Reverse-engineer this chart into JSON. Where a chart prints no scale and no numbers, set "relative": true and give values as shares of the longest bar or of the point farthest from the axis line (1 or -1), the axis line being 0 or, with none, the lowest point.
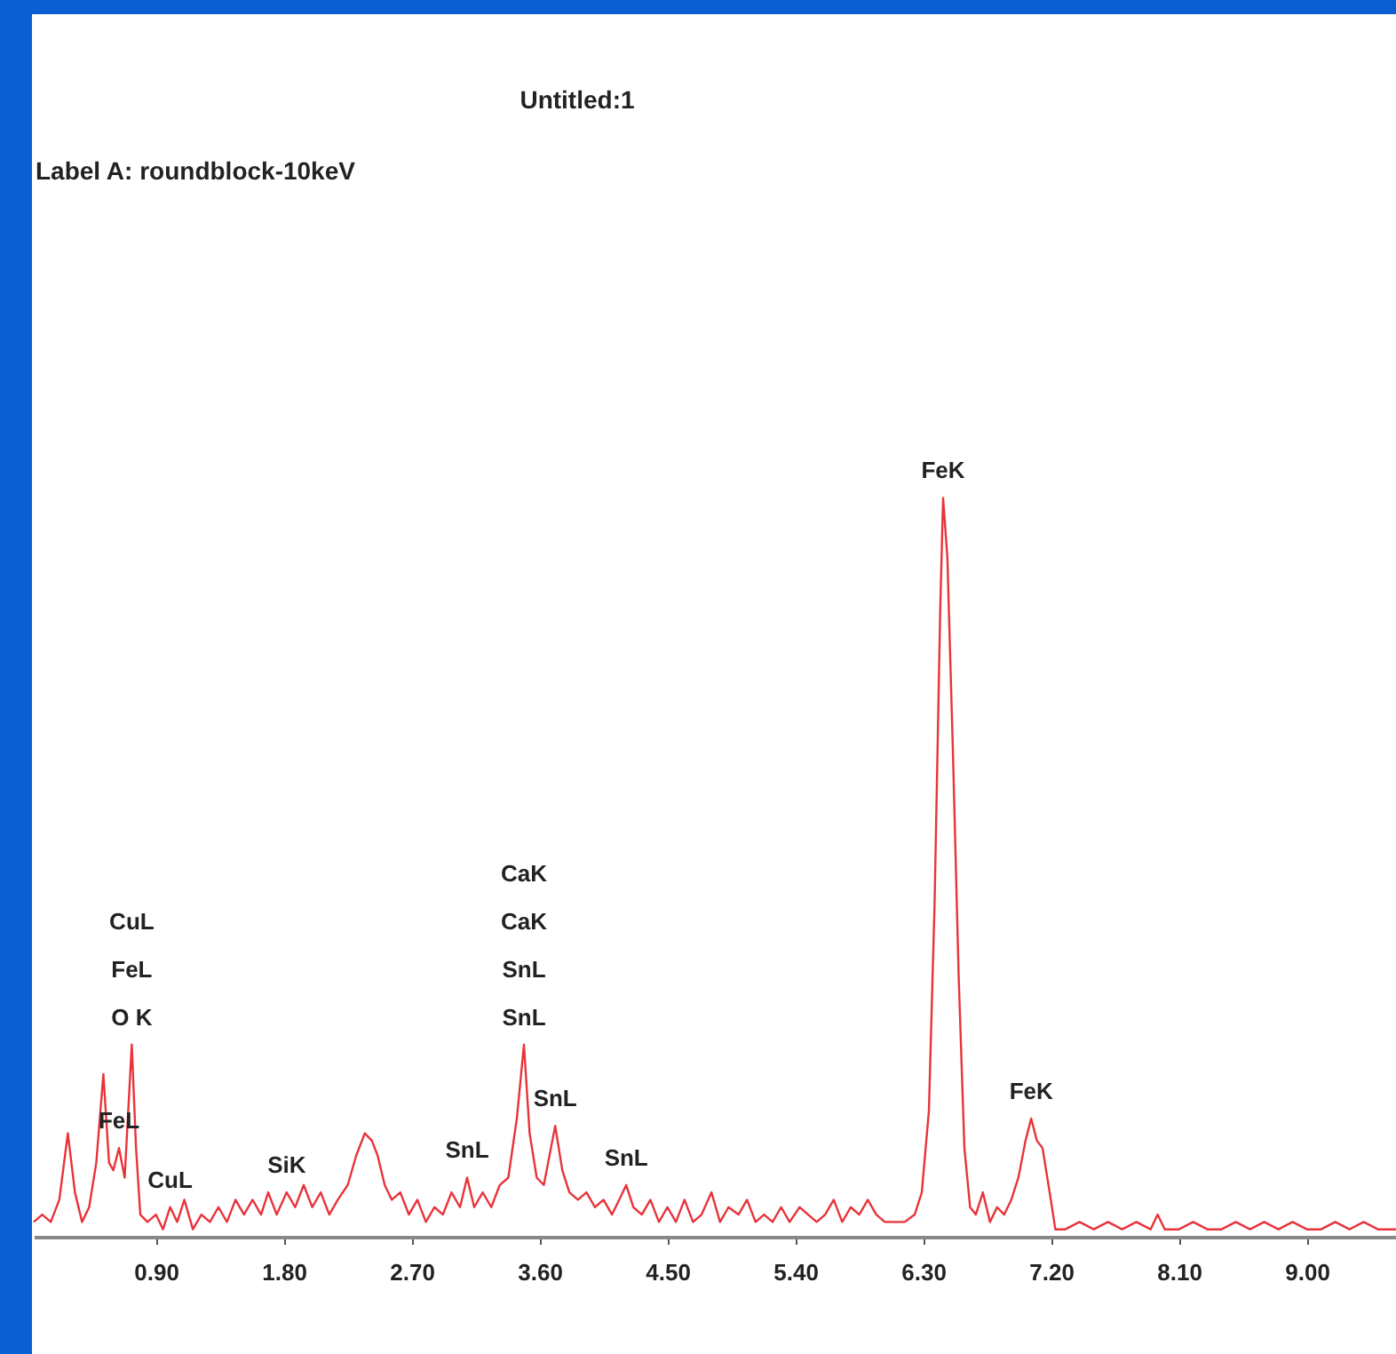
{
  "chart_data": {
    "type": "line",
    "title": "Untitled:1",
    "subtitle": "Label A: roundblock-10keV",
    "relative": true,
    "xlim": [
      0.04,
      9.64
    ],
    "xticks": [
      {
        "value": 0.9,
        "label": "0.90"
      },
      {
        "value": 1.8,
        "label": "1.80"
      },
      {
        "value": 2.7,
        "label": "2.70"
      },
      {
        "value": 3.6,
        "label": "3.60"
      },
      {
        "value": 4.5,
        "label": "4.50"
      },
      {
        "value": 5.4,
        "label": "5.40"
      },
      {
        "value": 6.3,
        "label": "6.30"
      },
      {
        "value": 7.2,
        "label": "7.20"
      },
      {
        "value": 8.1,
        "label": "8.10"
      },
      {
        "value": 9.0,
        "label": "9.00"
      }
    ],
    "grid": false,
    "series": [
      {
        "color": "#e8333a",
        "x": [
          0.04,
          0.1,
          0.16,
          0.22,
          0.28,
          0.33,
          0.38,
          0.43,
          0.48,
          0.53,
          0.57,
          0.6,
          0.64,
          0.68,
          0.73,
          0.76,
          0.79,
          0.84,
          0.9,
          0.95,
          1.0,
          1.05,
          1.1,
          1.16,
          1.22,
          1.28,
          1.34,
          1.4,
          1.46,
          1.52,
          1.58,
          1.64,
          1.69,
          1.75,
          1.82,
          1.88,
          1.94,
          2.0,
          2.06,
          2.12,
          2.18,
          2.25,
          2.31,
          2.37,
          2.42,
          2.46,
          2.51,
          2.56,
          2.62,
          2.68,
          2.74,
          2.8,
          2.86,
          2.92,
          2.98,
          3.04,
          3.09,
          3.14,
          3.2,
          3.26,
          3.32,
          3.38,
          3.44,
          3.49,
          3.53,
          3.58,
          3.63,
          3.67,
          3.71,
          3.76,
          3.81,
          3.87,
          3.93,
          3.99,
          4.05,
          4.11,
          4.16,
          4.21,
          4.26,
          4.32,
          4.38,
          4.44,
          4.5,
          4.56,
          4.62,
          4.68,
          4.74,
          4.81,
          4.87,
          4.93,
          5.0,
          5.06,
          5.12,
          5.18,
          5.24,
          5.3,
          5.36,
          5.43,
          5.49,
          5.55,
          5.61,
          5.67,
          5.73,
          5.79,
          5.85,
          5.91,
          5.97,
          6.03,
          6.1,
          6.17,
          6.24,
          6.29,
          6.34,
          6.38,
          6.42,
          6.44,
          6.47,
          6.51,
          6.55,
          6.59,
          6.63,
          6.67,
          6.72,
          6.77,
          6.82,
          6.87,
          6.92,
          6.97,
          7.02,
          7.06,
          7.1,
          7.14,
          7.19,
          7.23,
          7.3,
          7.4,
          7.5,
          7.6,
          7.7,
          7.8,
          7.9,
          7.95,
          8.0,
          8.1,
          8.2,
          8.3,
          8.4,
          8.5,
          8.6,
          8.7,
          8.8,
          8.9,
          9.0,
          9.1,
          9.2,
          9.3,
          9.4,
          9.5,
          9.64
        ],
        "values": [
          0.02,
          0.03,
          0.02,
          0.05,
          0.14,
          0.06,
          0.02,
          0.04,
          0.1,
          0.22,
          0.1,
          0.09,
          0.12,
          0.08,
          0.26,
          0.12,
          0.03,
          0.02,
          0.03,
          0.01,
          0.04,
          0.02,
          0.05,
          0.01,
          0.03,
          0.02,
          0.04,
          0.02,
          0.05,
          0.03,
          0.05,
          0.03,
          0.06,
          0.03,
          0.06,
          0.04,
          0.07,
          0.04,
          0.06,
          0.03,
          0.05,
          0.07,
          0.11,
          0.14,
          0.13,
          0.11,
          0.07,
          0.05,
          0.06,
          0.03,
          0.05,
          0.02,
          0.04,
          0.03,
          0.06,
          0.04,
          0.08,
          0.04,
          0.06,
          0.04,
          0.07,
          0.08,
          0.16,
          0.26,
          0.14,
          0.08,
          0.07,
          0.11,
          0.15,
          0.09,
          0.06,
          0.05,
          0.06,
          0.04,
          0.05,
          0.03,
          0.05,
          0.07,
          0.04,
          0.03,
          0.05,
          0.02,
          0.04,
          0.02,
          0.05,
          0.02,
          0.03,
          0.06,
          0.02,
          0.04,
          0.03,
          0.05,
          0.02,
          0.03,
          0.02,
          0.04,
          0.02,
          0.04,
          0.03,
          0.02,
          0.03,
          0.05,
          0.02,
          0.04,
          0.03,
          0.05,
          0.03,
          0.02,
          0.02,
          0.02,
          0.03,
          0.06,
          0.17,
          0.45,
          0.85,
          1.0,
          0.92,
          0.65,
          0.35,
          0.12,
          0.04,
          0.03,
          0.06,
          0.02,
          0.04,
          0.03,
          0.05,
          0.08,
          0.13,
          0.16,
          0.13,
          0.12,
          0.06,
          0.01,
          0.01,
          0.02,
          0.01,
          0.02,
          0.01,
          0.02,
          0.01,
          0.03,
          0.01,
          0.01,
          0.02,
          0.01,
          0.01,
          0.02,
          0.01,
          0.02,
          0.01,
          0.02,
          0.01,
          0.01,
          0.02,
          0.01,
          0.02,
          0.01,
          0.01
        ]
      }
    ],
    "annotations": [
      {
        "text": "O K",
        "x": 0.73,
        "y": 0.26
      },
      {
        "text": "FeL",
        "x": 0.73,
        "y": 0.26
      },
      "CuL",
      {
        "text": "FeL",
        "x": 0.64,
        "y": 0.12
      },
      {
        "text": "CuL",
        "x": 1.0,
        "y": 0.04
      },
      {
        "text": "SiK",
        "x": 1.82,
        "y": 0.06
      },
      {
        "text": "SnL",
        "x": 3.09,
        "y": 0.08
      },
      {
        "text": "SnL",
        "x": 3.49,
        "y": 0.26
      },
      {
        "text": "SnL",
        "x": 3.71,
        "y": 0.15
      },
      {
        "text": "SnL",
        "x": 4.21,
        "y": 0.07
      },
      {
        "text": "SnL",
        "x": 3.49,
        "y": 0.26
      },
      "CaK",
      "CaK",
      {
        "text": "FeK",
        "x": 6.44,
        "y": 1.0
      },
      {
        "text": "FeK",
        "x": 7.06,
        "y": 0.16
      }
    ]
  }
}
